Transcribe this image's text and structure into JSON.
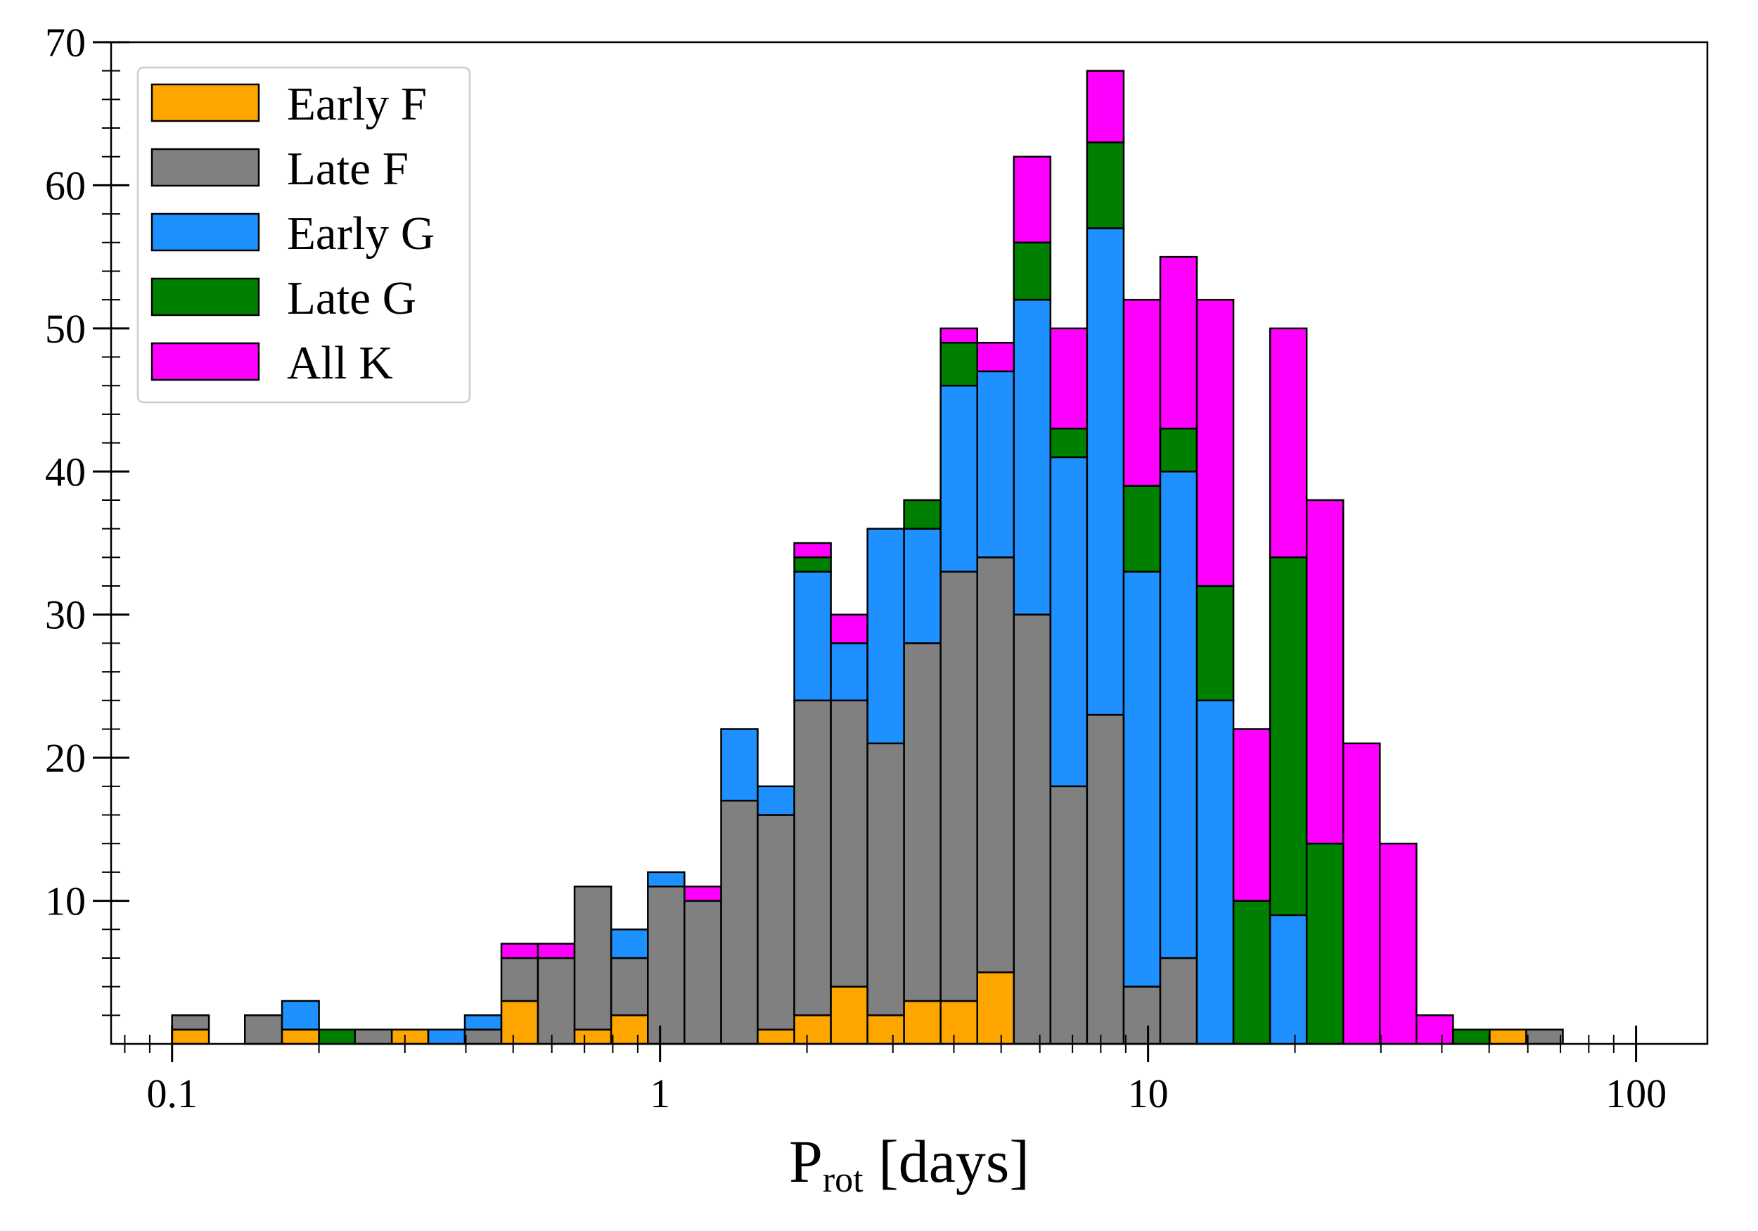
{
  "chart_data": {
    "type": "bar",
    "stacked": true,
    "x_scale": "log",
    "xlabel": "P",
    "xlabel_subscript": "rot",
    "xlabel_suffix": " [days]",
    "ylabel": "",
    "xlim": [
      0.075,
      140
    ],
    "ylim": [
      0,
      70
    ],
    "x_tick_labels": [
      {
        "value": 0.1,
        "label": "0.1"
      },
      {
        "value": 1,
        "label": "1"
      },
      {
        "value": 10,
        "label": "10"
      },
      {
        "value": 100,
        "label": "100"
      }
    ],
    "y_tick_labels": [
      {
        "value": 10,
        "label": "10"
      },
      {
        "value": 20,
        "label": "20"
      },
      {
        "value": 30,
        "label": "30"
      },
      {
        "value": 40,
        "label": "40"
      },
      {
        "value": 50,
        "label": "50"
      },
      {
        "value": 60,
        "label": "60"
      },
      {
        "value": 70,
        "label": "70"
      }
    ],
    "grid": false,
    "legend_position": "top-left",
    "bin_edges": [
      0.1,
      0.119,
      0.141,
      0.168,
      0.2,
      0.237,
      0.282,
      0.335,
      0.398,
      0.473,
      0.562,
      0.668,
      0.794,
      0.944,
      1.122,
      1.334,
      1.585,
      1.884,
      2.239,
      2.661,
      3.162,
      3.758,
      4.467,
      5.309,
      6.31,
      7.499,
      8.913,
      10.593,
      12.589,
      14.962,
      17.783,
      21.135,
      25.119,
      29.854,
      35.481,
      42.17,
      50.119,
      59.566,
      70.795
    ],
    "series": [
      {
        "name": "Early F",
        "color": "#FFA500",
        "values": [
          1,
          0,
          0,
          1,
          0,
          0,
          1,
          0,
          0,
          3,
          0,
          1,
          2,
          0,
          0,
          0,
          1,
          2,
          4,
          2,
          3,
          3,
          5,
          0,
          0,
          0,
          0,
          0,
          0,
          0,
          0,
          0,
          0,
          0,
          0,
          0,
          1,
          0
        ]
      },
      {
        "name": "Late F",
        "color": "#808080",
        "values": [
          1,
          0,
          2,
          0,
          0,
          1,
          0,
          0,
          1,
          3,
          6,
          10,
          4,
          11,
          10,
          17,
          15,
          22,
          20,
          19,
          25,
          30,
          29,
          30,
          18,
          23,
          4,
          6,
          0,
          0,
          0,
          0,
          0,
          0,
          0,
          0,
          0,
          1
        ]
      },
      {
        "name": "Early G",
        "color": "#1E90FF",
        "values": [
          0,
          0,
          0,
          2,
          0,
          0,
          0,
          1,
          1,
          0,
          0,
          0,
          2,
          1,
          0,
          5,
          2,
          9,
          4,
          15,
          8,
          13,
          13,
          22,
          23,
          34,
          29,
          34,
          24,
          0,
          9,
          0,
          0,
          0,
          0,
          0,
          0,
          0
        ]
      },
      {
        "name": "Late G",
        "color": "#008000",
        "values": [
          0,
          0,
          0,
          0,
          1,
          0,
          0,
          0,
          0,
          0,
          0,
          0,
          0,
          0,
          0,
          0,
          0,
          1,
          0,
          0,
          2,
          3,
          0,
          4,
          2,
          6,
          6,
          3,
          8,
          10,
          25,
          14,
          0,
          0,
          0,
          1,
          0,
          0
        ]
      },
      {
        "name": "All K",
        "color": "#FF00FF",
        "values": [
          0,
          0,
          0,
          0,
          0,
          0,
          0,
          0,
          0,
          1,
          1,
          0,
          0,
          0,
          1,
          0,
          0,
          1,
          2,
          0,
          0,
          1,
          2,
          6,
          7,
          5,
          13,
          12,
          20,
          12,
          16,
          24,
          21,
          14,
          2,
          0,
          0,
          0
        ]
      }
    ]
  }
}
